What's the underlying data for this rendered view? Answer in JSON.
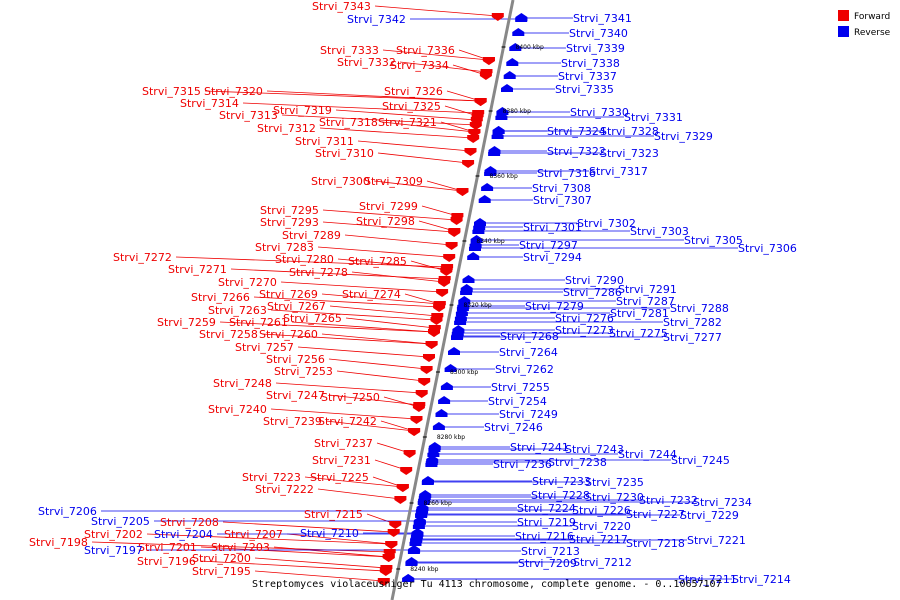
{
  "caption": "Streptomyces violaceusniger Tu 4113 chromosome, complete genome. - 0..10657107",
  "legend": [
    {
      "label": "Forward",
      "color": "#ee0000"
    },
    {
      "label": "Reverse",
      "color": "#0000ee"
    }
  ],
  "ticks": [
    "8400 kbp",
    "8380 kbp",
    "8360 kbp",
    "8340 kbp",
    "8320 kbp",
    "8300 kbp",
    "8280 kbp",
    "8260 kbp",
    "8240 kbp"
  ],
  "forward_genes": [
    "Strvi_7343",
    "Strvi_7336",
    "Strvi_7333",
    "Strvi_7332",
    "Strvi_7334",
    "Strvi_7326",
    "Strvi_7325",
    "Strvi_7315",
    "Strvi_7320",
    "Strvi_7314",
    "Strvi_7319",
    "Strvi_7313",
    "Strvi_7318",
    "Strvi_7321",
    "Strvi_7312",
    "Strvi_7311",
    "Strvi_7310",
    "Strvi_7300",
    "Strvi_7309",
    "Strvi_7299",
    "Strvi_7295",
    "Strvi_7298",
    "Strvi_7293",
    "Strvi_7289",
    "Strvi_7283",
    "Strvi_7280",
    "Strvi_7285",
    "Strvi_7272",
    "Strvi_7278",
    "Strvi_7271",
    "Strvi_7270",
    "Strvi_7269",
    "Strvi_7274",
    "Strvi_7266",
    "Strvi_7267",
    "Strvi_7263",
    "Strvi_7265",
    "Strvi_7259",
    "Strvi_7261",
    "Strvi_7258",
    "Strvi_7260",
    "Strvi_7257",
    "Strvi_7256",
    "Strvi_7253",
    "Strvi_7248",
    "Strvi_7247",
    "Strvi_7250",
    "Strvi_7240",
    "Strvi_7239",
    "Strvi_7242",
    "Strvi_7237",
    "Strvi_7231",
    "Strvi_7223",
    "Strvi_7225",
    "Strvi_7222",
    "Strvi_7215",
    "Strvi_7208",
    "Strvi_7202",
    "Strvi_7207",
    "Strvi_7198",
    "Strvi_7201",
    "Strvi_7203",
    "Strvi_7200",
    "Strvi_7196",
    "Strvi_7195"
  ],
  "reverse_genes": [
    "Strvi_7342",
    "Strvi_7341",
    "Strvi_7340",
    "Strvi_7339",
    "Strvi_7338",
    "Strvi_7337",
    "Strvi_7335",
    "Strvi_7330",
    "Strvi_7331",
    "Strvi_7324",
    "Strvi_7328",
    "Strvi_7329",
    "Strvi_7322",
    "Strvi_7323",
    "Strvi_7316",
    "Strvi_7317",
    "Strvi_7308",
    "Strvi_7307",
    "Strvi_7302",
    "Strvi_7301",
    "Strvi_7303",
    "Strvi_7305",
    "Strvi_7306",
    "Strvi_7297",
    "Strvi_7294",
    "Strvi_7290",
    "Strvi_7291",
    "Strvi_7286",
    "Strvi_7287",
    "Strvi_7288",
    "Strvi_7279",
    "Strvi_7281",
    "Strvi_7276",
    "Strvi_7282",
    "Strvi_7273",
    "Strvi_7275",
    "Strvi_7277",
    "Strvi_7268",
    "Strvi_7264",
    "Strvi_7262",
    "Strvi_7255",
    "Strvi_7254",
    "Strvi_7249",
    "Strvi_7246",
    "Strvi_7241",
    "Strvi_7243",
    "Strvi_7244",
    "Strvi_7245",
    "Strvi_7236",
    "Strvi_7238",
    "Strvi_7233",
    "Strvi_7235",
    "Strvi_7228",
    "Strvi_7230",
    "Strvi_7232",
    "Strvi_7234",
    "Strvi_7224",
    "Strvi_7226",
    "Strvi_7227",
    "Strvi_7229",
    "Strvi_7219",
    "Strvi_7220",
    "Strvi_7216",
    "Strvi_7217",
    "Strvi_7218",
    "Strvi_7221",
    "Strvi_7213",
    "Strvi_7209",
    "Strvi_7212",
    "Strvi_7211",
    "Strvi_7214",
    "Strvi_7206",
    "Strvi_7205",
    "Strvi_7204",
    "Strvi_7210",
    "Strvi_7197"
  ]
}
